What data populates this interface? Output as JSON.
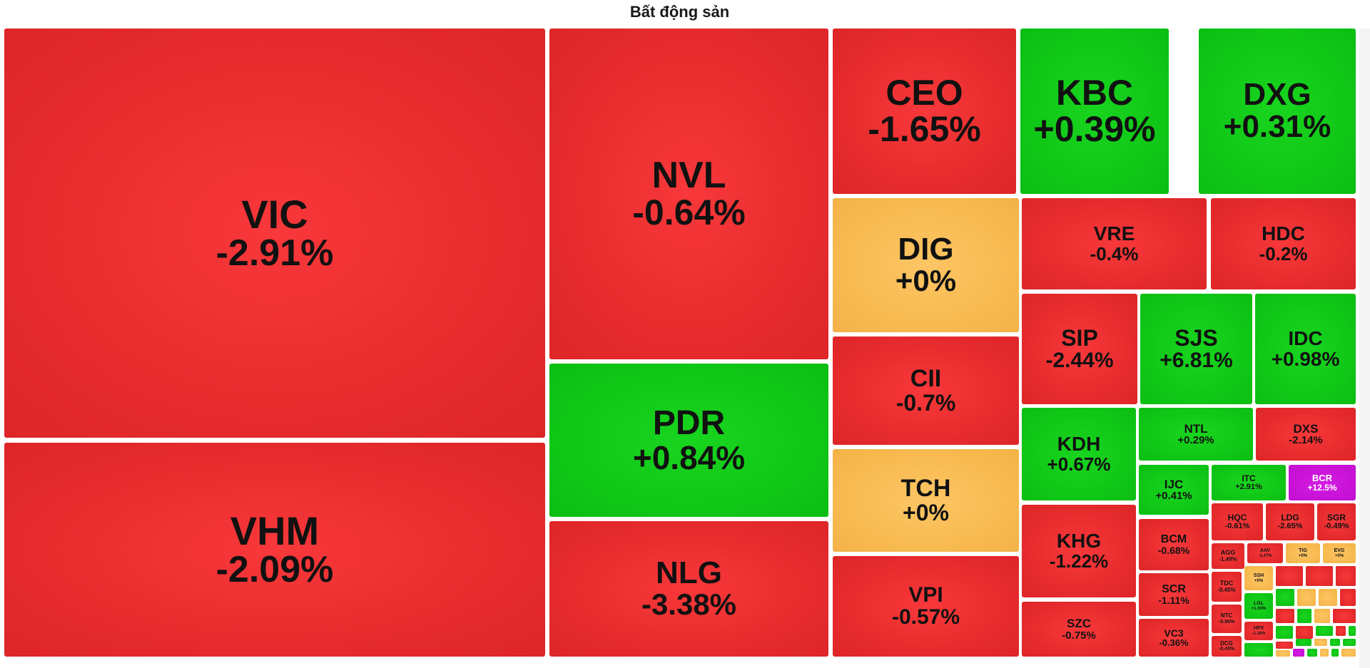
{
  "chart_data": {
    "type": "treemap",
    "title": "Bất động sản",
    "tiles": [
      {
        "ticker": "VIC",
        "change": "-2.91%",
        "status": "down"
      },
      {
        "ticker": "VHM",
        "change": "-2.09%",
        "status": "down"
      },
      {
        "ticker": "NVL",
        "change": "-0.64%",
        "status": "down"
      },
      {
        "ticker": "PDR",
        "change": "+0.84%",
        "status": "up"
      },
      {
        "ticker": "NLG",
        "change": "-3.38%",
        "status": "down"
      },
      {
        "ticker": "CEO",
        "change": "-1.65%",
        "status": "down"
      },
      {
        "ticker": "KBC",
        "change": "+0.39%",
        "status": "up"
      },
      {
        "ticker": "DXG",
        "change": "+0.31%",
        "status": "up"
      },
      {
        "ticker": "DIG",
        "change": "+0%",
        "status": "flat"
      },
      {
        "ticker": "CII",
        "change": "-0.7%",
        "status": "down"
      },
      {
        "ticker": "TCH",
        "change": "+0%",
        "status": "flat"
      },
      {
        "ticker": "VPI",
        "change": "-0.57%",
        "status": "down"
      },
      {
        "ticker": "VRE",
        "change": "-0.4%",
        "status": "down"
      },
      {
        "ticker": "HDC",
        "change": "-0.2%",
        "status": "down"
      },
      {
        "ticker": "SIP",
        "change": "-2.44%",
        "status": "down"
      },
      {
        "ticker": "SJS",
        "change": "+6.81%",
        "status": "up"
      },
      {
        "ticker": "IDC",
        "change": "+0.98%",
        "status": "up"
      },
      {
        "ticker": "KDH",
        "change": "+0.67%",
        "status": "up"
      },
      {
        "ticker": "NTL",
        "change": "+0.29%",
        "status": "up"
      },
      {
        "ticker": "DXS",
        "change": "-2.14%",
        "status": "down"
      },
      {
        "ticker": "IJC",
        "change": "+0.41%",
        "status": "up"
      },
      {
        "ticker": "ITC",
        "change": "+2.91%",
        "status": "up"
      },
      {
        "ticker": "BCR",
        "change": "+12.5%",
        "status": "ceiling"
      },
      {
        "ticker": "KHG",
        "change": "-1.22%",
        "status": "down"
      },
      {
        "ticker": "BCM",
        "change": "-0.68%",
        "status": "down"
      },
      {
        "ticker": "HQC",
        "change": "-0.61%",
        "status": "down"
      },
      {
        "ticker": "LDG",
        "change": "-2.65%",
        "status": "down"
      },
      {
        "ticker": "SGR",
        "change": "-0.49%",
        "status": "down"
      },
      {
        "ticker": "AGG",
        "change": "-1.49%",
        "status": "down"
      },
      {
        "ticker": "AAV",
        "change": "-1.47%",
        "status": "down"
      },
      {
        "ticker": "TIG",
        "change": "+0%",
        "status": "flat"
      },
      {
        "ticker": "EVG",
        "change": "+0%",
        "status": "flat"
      },
      {
        "ticker": "SCR",
        "change": "-1.11%",
        "status": "down"
      },
      {
        "ticker": "TDC",
        "change": "-0.45%",
        "status": "down"
      },
      {
        "ticker": "SSH",
        "change": "+0%",
        "status": "flat"
      },
      {
        "ticker": "SZC",
        "change": "-0.75%",
        "status": "down"
      },
      {
        "ticker": "VC3",
        "change": "-0.36%",
        "status": "down"
      },
      {
        "ticker": "NTC",
        "change": "-0.96%",
        "status": "down"
      },
      {
        "ticker": "LGL",
        "change": "+1.93%",
        "status": "up"
      },
      {
        "ticker": "HPX",
        "change": "-1.16%",
        "status": "down"
      },
      {
        "ticker": "DCG",
        "change": "-0.43%",
        "status": "down"
      }
    ],
    "colors": {
      "down": "#e42a2c",
      "up": "#0fc516",
      "flat": "#f7b94e",
      "ceiling": "#c10fd0"
    }
  }
}
